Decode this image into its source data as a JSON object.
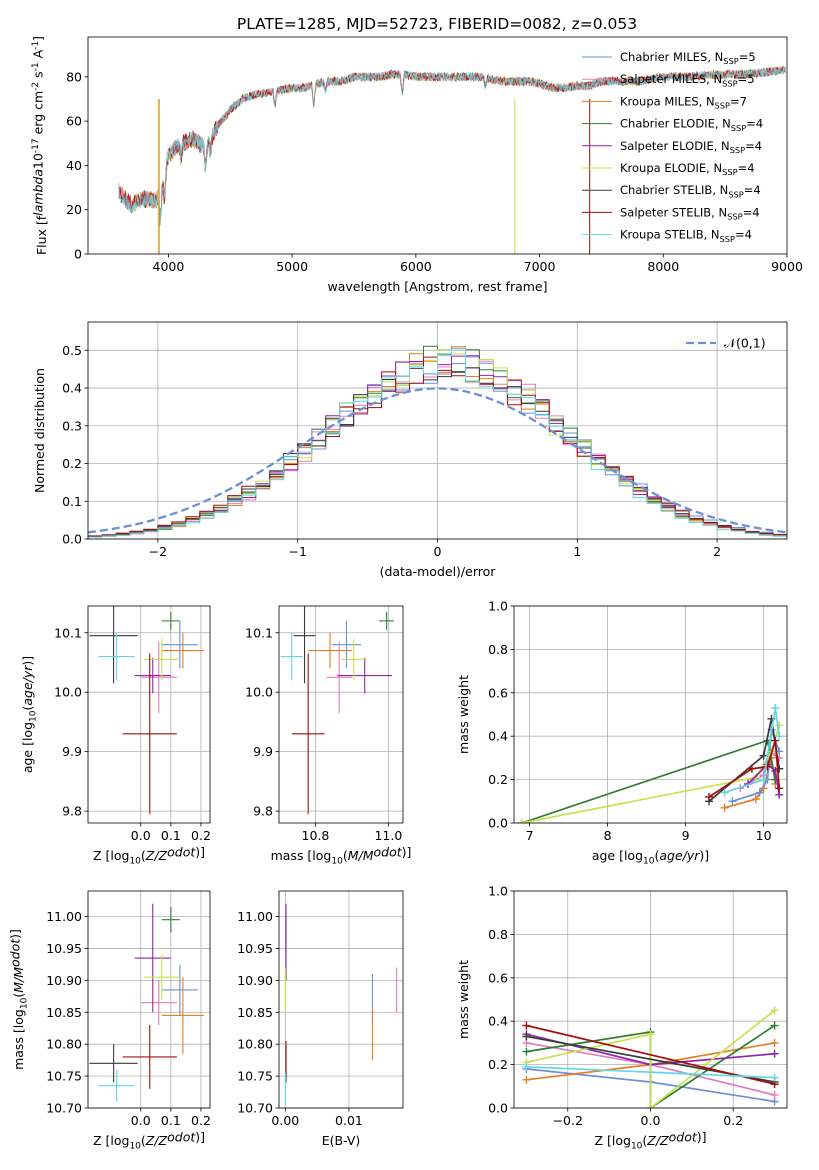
{
  "figure_title": "PLATE=1285, MJD=52723, FIBERID=0082, z=0.053",
  "colors": {
    "Chabrier MILES": "#6d8fd8",
    "Salpeter MILES": "#e27bbd",
    "Kroupa MILES": "#e67e22",
    "Chabrier ELODIE": "#2e7d32",
    "Salpeter ELODIE": "#8e24aa",
    "Kroupa ELODIE": "#c6e24a",
    "Chabrier STELIB": "#3a3a3a",
    "Salpeter STELIB": "#a30d0d",
    "Kroupa STELIB": "#63d6e6"
  },
  "chart_data": [
    {
      "id": "spectrum",
      "type": "line",
      "xlabel": "wavelength [Angstrom, rest frame]",
      "ylabel": "Flux [f$_\\lambda$10$^{-17}$ erg cm$^{-2}$ s$^{-1}$ A$^{-1}$]",
      "xlim": [
        3350,
        9000
      ],
      "ylim": [
        0,
        98
      ],
      "xticks": [
        4000,
        5000,
        6000,
        7000,
        8000,
        9000
      ],
      "yticks": [
        0,
        20,
        40,
        60,
        80
      ],
      "grid": false,
      "legend_position": "top-right",
      "legend": [
        {
          "label": "Chabrier MILES, N$_{SSP}$=5",
          "color_key": "Chabrier MILES"
        },
        {
          "label": "Salpeter MILES, N$_{SSP}$=5",
          "color_key": "Salpeter MILES"
        },
        {
          "label": "Kroupa MILES, N$_{SSP}$=7",
          "color_key": "Kroupa MILES"
        },
        {
          "label": "Chabrier ELODIE, N$_{SSP}$=4",
          "color_key": "Chabrier ELODIE"
        },
        {
          "label": "Salpeter ELODIE, N$_{SSP}$=4",
          "color_key": "Salpeter ELODIE"
        },
        {
          "label": "Kroupa ELODIE, N$_{SSP}$=4",
          "color_key": "Kroupa ELODIE"
        },
        {
          "label": "Chabrier STELIB, N$_{SSP}$=4",
          "color_key": "Chabrier STELIB"
        },
        {
          "label": "Salpeter STELIB, N$_{SSP}$=4",
          "color_key": "Salpeter STELIB"
        },
        {
          "label": "Kroupa STELIB, N$_{SSP}$=4",
          "color_key": "Kroupa STELIB"
        }
      ],
      "continuum": [
        [
          3600,
          28
        ],
        [
          3700,
          22
        ],
        [
          3800,
          25
        ],
        [
          3900,
          24
        ],
        [
          3950,
          30
        ],
        [
          4000,
          45
        ],
        [
          4100,
          50
        ],
        [
          4200,
          52
        ],
        [
          4300,
          48
        ],
        [
          4400,
          58
        ],
        [
          4500,
          65
        ],
        [
          4600,
          70
        ],
        [
          4700,
          72
        ],
        [
          4800,
          73
        ],
        [
          4900,
          74
        ],
        [
          5000,
          75
        ],
        [
          5100,
          75
        ],
        [
          5200,
          77
        ],
        [
          5300,
          78
        ],
        [
          5400,
          78
        ],
        [
          5500,
          80
        ],
        [
          5600,
          80
        ],
        [
          5700,
          80
        ],
        [
          5800,
          81
        ],
        [
          5900,
          81
        ],
        [
          6000,
          80
        ],
        [
          6100,
          80
        ],
        [
          6200,
          80
        ],
        [
          6300,
          80
        ],
        [
          6400,
          80
        ],
        [
          6500,
          80
        ],
        [
          6600,
          79
        ],
        [
          6700,
          78
        ],
        [
          6800,
          78
        ],
        [
          6900,
          78
        ],
        [
          7000,
          77
        ],
        [
          7100,
          75
        ],
        [
          7200,
          75
        ],
        [
          7300,
          76
        ],
        [
          7400,
          76
        ],
        [
          7500,
          78
        ],
        [
          7600,
          78
        ],
        [
          7700,
          78
        ],
        [
          7800,
          78
        ],
        [
          7900,
          79
        ],
        [
          8000,
          80
        ],
        [
          8200,
          80
        ],
        [
          8400,
          81
        ],
        [
          8600,
          81
        ],
        [
          8800,
          82
        ],
        [
          8990,
          83
        ]
      ]
    },
    {
      "id": "residual_histogram",
      "type": "area",
      "xlabel": "(data-model)/error",
      "ylabel": "Normed distribution",
      "xlim": [
        -2.5,
        2.5
      ],
      "ylim": [
        0,
        0.575
      ],
      "xticks": [
        -2,
        -1,
        0,
        1,
        2
      ],
      "yticks": [
        0.0,
        0.1,
        0.2,
        0.3,
        0.4,
        0.5
      ],
      "grid": true,
      "legend_position": "top-right",
      "legend": [
        {
          "label": "$\\mathcal{N}(0,1)$",
          "color_key": "Chabrier MILES"
        }
      ]
    },
    {
      "id": "age_vs_Z",
      "type": "scatter",
      "xlabel": "Z [log$_{10}$($Z/Z_\\odot$)]",
      "ylabel": "age  [log$_{10}$($age/yr$)]",
      "xlim": [
        -0.175,
        0.23
      ],
      "ylim": [
        9.78,
        10.145
      ],
      "xticks": [
        0.0,
        0.1,
        0.2
      ],
      "yticks": [
        9.8,
        9.9,
        10.0,
        10.1
      ],
      "grid": true,
      "points": [
        {
          "key": "Chabrier MILES",
          "x": 0.13,
          "y": 10.08,
          "xerr": 0.06,
          "yerr": 0.04
        },
        {
          "key": "Salpeter MILES",
          "x": 0.06,
          "y": 10.025,
          "xerr": 0.06,
          "yerr": 0.06
        },
        {
          "key": "Kroupa MILES",
          "x": 0.14,
          "y": 10.07,
          "xerr": 0.07,
          "yerr": 0.03
        },
        {
          "key": "Chabrier ELODIE",
          "x": 0.1,
          "y": 10.12,
          "xerr": 0.03,
          "yerr": 0.015
        },
        {
          "key": "Salpeter ELODIE",
          "x": 0.04,
          "y": 10.028,
          "xerr": 0.06,
          "yerr": 0.03
        },
        {
          "key": "Kroupa ELODIE",
          "x": 0.07,
          "y": 10.055,
          "xerr": 0.06,
          "yerr": 0.035
        },
        {
          "key": "Chabrier STELIB",
          "x": -0.09,
          "y": 10.095,
          "xerr": 0.08,
          "yerr": 0.08
        },
        {
          "key": "Salpeter STELIB",
          "x": 0.03,
          "y": 9.93,
          "xerr": 0.09,
          "yerr": 0.135
        },
        {
          "key": "Kroupa STELIB",
          "x": -0.08,
          "y": 10.06,
          "xerr": 0.06,
          "yerr": 0.04
        }
      ]
    },
    {
      "id": "age_vs_mass",
      "type": "scatter",
      "xlabel": "mass [log$_{10}$($M/M_\\odot$)]",
      "ylabel": "",
      "xlim": [
        10.7,
        11.04
      ],
      "ylim": [
        9.78,
        10.145
      ],
      "xticks": [
        10.8,
        11.0
      ],
      "yticks": [
        9.8,
        9.9,
        10.0,
        10.1
      ],
      "grid": true,
      "points": [
        {
          "key": "Chabrier MILES",
          "x": 10.885,
          "y": 10.08,
          "xerr": 0.04,
          "yerr": 0.04
        },
        {
          "key": "Salpeter MILES",
          "x": 10.865,
          "y": 10.025,
          "xerr": 0.035,
          "yerr": 0.06
        },
        {
          "key": "Kroupa MILES",
          "x": 10.84,
          "y": 10.07,
          "xerr": 0.06,
          "yerr": 0.03
        },
        {
          "key": "Chabrier ELODIE",
          "x": 10.995,
          "y": 10.12,
          "xerr": 0.02,
          "yerr": 0.015
        },
        {
          "key": "Salpeter ELODIE",
          "x": 10.935,
          "y": 10.028,
          "xerr": 0.075,
          "yerr": 0.03
        },
        {
          "key": "Kroupa ELODIE",
          "x": 10.905,
          "y": 10.055,
          "xerr": 0.035,
          "yerr": 0.035
        },
        {
          "key": "Chabrier STELIB",
          "x": 10.77,
          "y": 10.095,
          "xerr": 0.03,
          "yerr": 0.08
        },
        {
          "key": "Salpeter STELIB",
          "x": 10.78,
          "y": 9.93,
          "xerr": 0.045,
          "yerr": 0.135
        },
        {
          "key": "Kroupa STELIB",
          "x": 10.735,
          "y": 10.06,
          "xerr": 0.03,
          "yerr": 0.04
        }
      ]
    },
    {
      "id": "mass_weight_vs_age",
      "type": "line",
      "xlabel": "age  [log$_{10}$($age/yr$)]",
      "ylabel": "mass weight",
      "xlim": [
        6.8,
        10.3
      ],
      "ylim": [
        0.0,
        1.0
      ],
      "xticks": [
        7,
        8,
        9,
        10
      ],
      "yticks": [
        0.0,
        0.2,
        0.4,
        0.6,
        0.8,
        1.0
      ],
      "grid": true,
      "series": [
        {
          "key": "Kroupa MILES",
          "x": [
            9.5,
            9.9,
            10.0,
            10.1,
            10.15
          ],
          "y": [
            0.07,
            0.11,
            0.16,
            0.3,
            0.18
          ]
        },
        {
          "key": "Chabrier MILES",
          "x": [
            9.6,
            9.95,
            10.05,
            10.1,
            10.2
          ],
          "y": [
            0.1,
            0.14,
            0.2,
            0.43,
            0.33
          ]
        },
        {
          "key": "Salpeter MILES",
          "x": [
            9.7,
            10.0,
            10.1,
            10.2
          ],
          "y": [
            0.16,
            0.22,
            0.32,
            0.3
          ]
        },
        {
          "key": "Chabrier ELODIE",
          "x": [
            6.9,
            10.05,
            10.15
          ],
          "y": [
            0.0,
            0.38,
            0.2
          ]
        },
        {
          "key": "Kroupa ELODIE",
          "x": [
            6.9,
            9.9,
            10.1,
            10.2
          ],
          "y": [
            0.0,
            0.21,
            0.33,
            0.45
          ]
        },
        {
          "key": "Salpeter ELODIE",
          "x": [
            9.8,
            10.05,
            10.15,
            10.2
          ],
          "y": [
            0.18,
            0.27,
            0.24,
            0.13
          ]
        },
        {
          "key": "Chabrier STELIB",
          "x": [
            9.3,
            10.0,
            10.1,
            10.2
          ],
          "y": [
            0.1,
            0.31,
            0.48,
            0.25
          ]
        },
        {
          "key": "Salpeter STELIB",
          "x": [
            9.3,
            9.85,
            10.05,
            10.15,
            10.2
          ],
          "y": [
            0.12,
            0.25,
            0.26,
            0.38,
            0.16
          ]
        },
        {
          "key": "Kroupa STELIB",
          "x": [
            9.5,
            10.0,
            10.15,
            10.2
          ],
          "y": [
            0.14,
            0.2,
            0.53,
            0.4
          ]
        }
      ]
    },
    {
      "id": "mass_vs_Z",
      "type": "scatter",
      "xlabel": "Z [log$_{10}$($Z/Z_\\odot$)]",
      "ylabel": "mass [log$_{10}$($M/M_\\odot$)]",
      "xlim": [
        -0.175,
        0.23
      ],
      "ylim": [
        10.7,
        11.04
      ],
      "xticks": [
        0.0,
        0.1,
        0.2
      ],
      "yticks": [
        10.7,
        10.75,
        10.8,
        10.85,
        10.9,
        10.95,
        11.0
      ],
      "grid": true,
      "points": [
        {
          "key": "Chabrier MILES",
          "x": 0.13,
          "y": 10.885,
          "xerr": 0.06,
          "yerr": 0.04
        },
        {
          "key": "Salpeter MILES",
          "x": 0.06,
          "y": 10.865,
          "xerr": 0.06,
          "yerr": 0.035
        },
        {
          "key": "Kroupa MILES",
          "x": 0.14,
          "y": 10.845,
          "xerr": 0.07,
          "yerr": 0.06
        },
        {
          "key": "Chabrier ELODIE",
          "x": 0.1,
          "y": 10.995,
          "xerr": 0.03,
          "yerr": 0.02
        },
        {
          "key": "Salpeter ELODIE",
          "x": 0.04,
          "y": 10.935,
          "xerr": 0.06,
          "yerr": 0.085
        },
        {
          "key": "Kroupa ELODIE",
          "x": 0.07,
          "y": 10.905,
          "xerr": 0.06,
          "yerr": 0.035
        },
        {
          "key": "Chabrier STELIB",
          "x": -0.09,
          "y": 10.77,
          "xerr": 0.08,
          "yerr": 0.03
        },
        {
          "key": "Salpeter STELIB",
          "x": 0.03,
          "y": 10.78,
          "xerr": 0.09,
          "yerr": 0.05
        },
        {
          "key": "Kroupa STELIB",
          "x": -0.08,
          "y": 10.735,
          "xerr": 0.06,
          "yerr": 0.025
        }
      ]
    },
    {
      "id": "mass_vs_EBV",
      "type": "scatter",
      "xlabel": "E(B-V)",
      "ylabel": "",
      "xlim": [
        -0.001,
        0.0185
      ],
      "ylim": [
        10.7,
        11.04
      ],
      "xticks": [
        0.0,
        0.01
      ],
      "yticks": [
        10.7,
        10.75,
        10.8,
        10.85,
        10.9,
        10.95,
        11.0
      ],
      "grid": true,
      "points": [
        {
          "key": "Chabrier MILES",
          "x": 0.0137,
          "y": 10.87,
          "xerr": 0.0,
          "yerr": 0.04
        },
        {
          "key": "Salpeter MILES",
          "x": 0.0175,
          "y": 10.885,
          "xerr": 0.0,
          "yerr": 0.035
        },
        {
          "key": "Kroupa MILES",
          "x": 0.0137,
          "y": 10.815,
          "xerr": 0.0,
          "yerr": 0.04
        },
        {
          "key": "Chabrier ELODIE",
          "x": 0.0001,
          "y": 10.985,
          "xerr": 0.0,
          "yerr": 0.02
        },
        {
          "key": "Salpeter ELODIE",
          "x": 0.0001,
          "y": 10.96,
          "xerr": 0.0,
          "yerr": 0.06
        },
        {
          "key": "Kroupa ELODIE",
          "x": 0.0,
          "y": 10.885,
          "xerr": 0.0,
          "yerr": 0.035
        },
        {
          "key": "Chabrier STELIB",
          "x": 0.0001,
          "y": 10.77,
          "xerr": 0.0,
          "yerr": 0.03
        },
        {
          "key": "Salpeter STELIB",
          "x": 0.0001,
          "y": 10.775,
          "xerr": 0.0,
          "yerr": 0.03
        },
        {
          "key": "Kroupa STELIB",
          "x": 0.0,
          "y": 10.73,
          "xerr": 0.0,
          "yerr": 0.025
        }
      ]
    },
    {
      "id": "mass_weight_vs_Z",
      "type": "line",
      "xlabel": "Z [log$_{10}$($Z/Z_\\odot$)]",
      "ylabel": "mass weight",
      "xlim": [
        -0.33,
        0.33
      ],
      "ylim": [
        0.0,
        1.0
      ],
      "xticks": [
        -0.2,
        0.0,
        0.2
      ],
      "yticks": [
        0.0,
        0.2,
        0.4,
        0.6,
        0.8,
        1.0
      ],
      "grid": true,
      "series": [
        {
          "key": "Chabrier MILES",
          "x": [
            -0.3,
            0.0,
            0.3
          ],
          "y": [
            0.18,
            0.12,
            0.03
          ]
        },
        {
          "key": "Salpeter MILES",
          "x": [
            -0.3,
            0.0,
            0.3
          ],
          "y": [
            0.3,
            0.2,
            0.06
          ]
        },
        {
          "key": "Kroupa MILES",
          "x": [
            -0.3,
            0.0,
            0.3
          ],
          "y": [
            0.13,
            0.2,
            0.3
          ]
        },
        {
          "key": "Chabrier ELODIE",
          "x": [
            -0.3,
            0.0,
            0.0,
            0.3
          ],
          "y": [
            0.26,
            0.35,
            0.0,
            0.38
          ]
        },
        {
          "key": "Salpeter ELODIE",
          "x": [
            -0.3,
            0.0,
            0.3
          ],
          "y": [
            0.34,
            0.2,
            0.25
          ]
        },
        {
          "key": "Kroupa ELODIE",
          "x": [
            -0.3,
            0.0,
            0.0,
            0.3
          ],
          "y": [
            0.21,
            0.34,
            0.0,
            0.45
          ]
        },
        {
          "key": "Chabrier STELIB",
          "x": [
            -0.3,
            0.3
          ],
          "y": [
            0.33,
            0.12
          ]
        },
        {
          "key": "Salpeter STELIB",
          "x": [
            -0.3,
            0.3
          ],
          "y": [
            0.38,
            0.11
          ]
        },
        {
          "key": "Kroupa STELIB",
          "x": [
            -0.3,
            0.3
          ],
          "y": [
            0.19,
            0.14
          ]
        }
      ]
    }
  ]
}
